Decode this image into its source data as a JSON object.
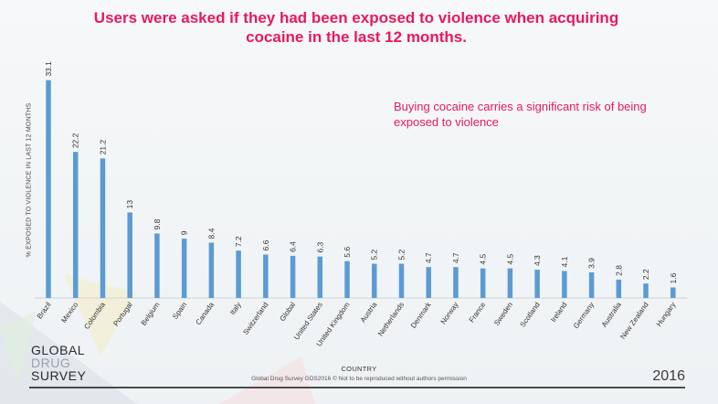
{
  "chart_data": {
    "type": "bar",
    "title": "Users were asked if they had been exposed to violence when acquiring cocaine in the last 12 months.",
    "annotation": "Buying cocaine  carries a significant risk of being exposed to violence",
    "xlabel": "COUNTRY",
    "ylabel": "% EXPOSED TO VIOLENCE IN LAST 12 MONTHS",
    "ylim": [
      0,
      35
    ],
    "categories": [
      "Brazil",
      "Mexico",
      "Colombia",
      "Portugal",
      "Belgium",
      "Spain",
      "Canada",
      "Italy",
      "Switzerland",
      "Global",
      "United States",
      "United Kingdom",
      "Austria",
      "Netherlands",
      "Denmark",
      "Norway",
      "France",
      "Sweden",
      "Scotland",
      "Ireland",
      "Germany",
      "Australia",
      "New Zealand",
      "Hungary"
    ],
    "values": [
      33.1,
      22.2,
      21.2,
      13,
      9.8,
      9,
      8.4,
      7.2,
      6.6,
      6.4,
      6.3,
      5.6,
      5.2,
      5.2,
      4.7,
      4.7,
      4.5,
      4.5,
      4.3,
      4.1,
      3.9,
      2.8,
      2.2,
      1.6
    ],
    "bar_color": "#5b9bd5"
  },
  "footer": {
    "note": "Global Drug Survey GDS2016 © Not to be reproduced without authors permission",
    "year": "2016"
  },
  "logo": {
    "line1": "GLOBAL",
    "line2": "DRUG",
    "line3": "SURVEY"
  }
}
